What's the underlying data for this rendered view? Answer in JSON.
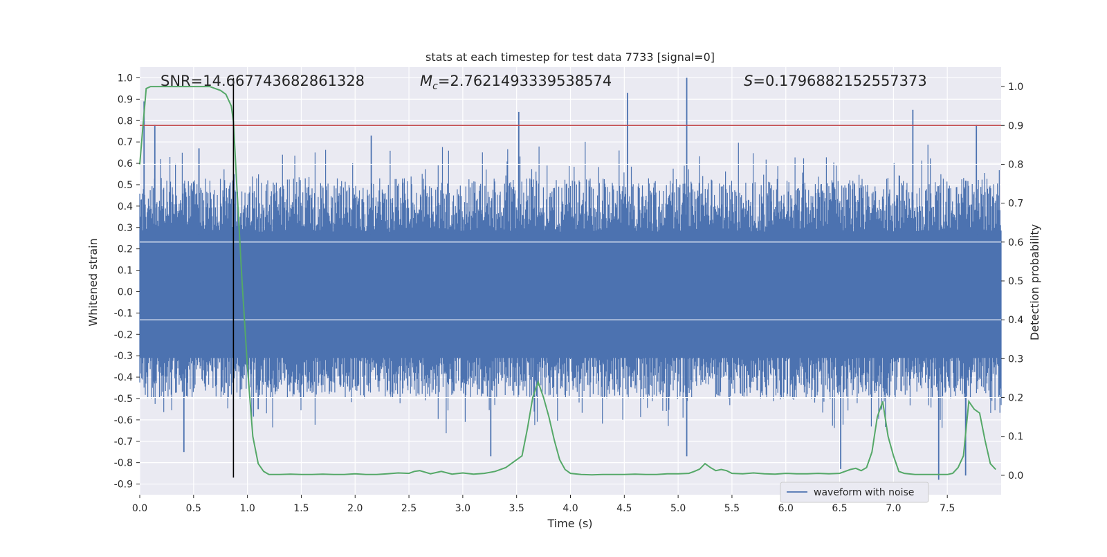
{
  "chart_data": {
    "type": "line",
    "title": "stats at each timestep for test data 7733 [signal=0]",
    "xlabel": "Time (s)",
    "ylabel": "Whitened strain",
    "y2label": "Detection probability",
    "xlim": [
      0.0,
      8.0
    ],
    "ylim": [
      -0.95,
      1.05
    ],
    "y2lim": [
      -0.05,
      1.05
    ],
    "x_ticks": [
      0.0,
      0.5,
      1.0,
      1.5,
      2.0,
      2.5,
      3.0,
      3.5,
      4.0,
      4.5,
      5.0,
      5.5,
      6.0,
      6.5,
      7.0,
      7.5
    ],
    "y_ticks": [
      -0.9,
      -0.8,
      -0.7,
      -0.6,
      -0.5,
      -0.4,
      -0.3,
      -0.2,
      -0.1,
      0.0,
      0.1,
      0.2,
      0.3,
      0.4,
      0.5,
      0.6,
      0.7,
      0.8,
      0.9,
      1.0
    ],
    "y2_ticks": [
      0.0,
      0.1,
      0.2,
      0.3,
      0.4,
      0.5,
      0.6,
      0.7,
      0.8,
      0.9,
      1.0
    ],
    "grid": true,
    "legend": {
      "location": "lower right",
      "entries": [
        "waveform with noise"
      ]
    },
    "annotations": {
      "snr": "SNR=14.667743682861328",
      "mc_symbol": "M",
      "mc_sub": "c",
      "mc_value": "=2.7621493339538574",
      "s_symbol": "S",
      "s_value": "=0.1796882152557373"
    },
    "threshold_probability": 0.9,
    "detection_time": 0.87,
    "series": [
      {
        "name": "waveform with noise",
        "axis": "left",
        "color": "#4c72b0",
        "description": "whitened strain noise, dense oscillation roughly between -0.5 and 0.6 with spikes",
        "peaks": [
          [
            0.04,
            0.89
          ],
          [
            0.14,
            0.78
          ],
          [
            0.41,
            -0.75
          ],
          [
            0.55,
            0.67
          ],
          [
            1.1,
            -0.55
          ],
          [
            2.15,
            0.73
          ],
          [
            3.26,
            -0.77
          ],
          [
            3.52,
            0.84
          ],
          [
            4.53,
            0.93
          ],
          [
            5.08,
            1.0
          ],
          [
            5.08,
            -0.77
          ],
          [
            6.51,
            -0.83
          ],
          [
            7.18,
            0.85
          ],
          [
            7.42,
            -0.88
          ],
          [
            7.67,
            -0.86
          ],
          [
            7.77,
            0.78
          ]
        ]
      },
      {
        "name": "detection probability",
        "axis": "right",
        "color": "#55a868",
        "x": [
          0.0,
          0.03,
          0.06,
          0.1,
          0.2,
          0.3,
          0.4,
          0.5,
          0.6,
          0.65,
          0.7,
          0.75,
          0.8,
          0.85,
          0.87,
          0.9,
          0.95,
          1.0,
          1.05,
          1.1,
          1.15,
          1.2,
          1.3,
          1.4,
          1.5,
          1.6,
          1.7,
          1.8,
          1.9,
          2.0,
          2.1,
          2.2,
          2.3,
          2.4,
          2.5,
          2.55,
          2.6,
          2.7,
          2.8,
          2.9,
          3.0,
          3.1,
          3.2,
          3.3,
          3.4,
          3.5,
          3.55,
          3.6,
          3.65,
          3.7,
          3.75,
          3.8,
          3.85,
          3.9,
          3.95,
          4.0,
          4.1,
          4.2,
          4.3,
          4.4,
          4.5,
          4.6,
          4.7,
          4.8,
          4.9,
          5.0,
          5.1,
          5.15,
          5.2,
          5.25,
          5.3,
          5.35,
          5.4,
          5.45,
          5.5,
          5.6,
          5.7,
          5.8,
          5.9,
          6.0,
          6.1,
          6.2,
          6.3,
          6.4,
          6.5,
          6.55,
          6.6,
          6.65,
          6.7,
          6.75,
          6.8,
          6.85,
          6.9,
          6.95,
          7.0,
          7.05,
          7.1,
          7.2,
          7.3,
          7.4,
          7.5,
          7.55,
          7.6,
          7.65,
          7.7,
          7.75,
          7.8,
          7.85,
          7.9,
          7.95
        ],
        "values": [
          0.8,
          0.9,
          0.995,
          1.0,
          1.0,
          1.0,
          1.0,
          1.0,
          1.0,
          1.0,
          0.995,
          0.99,
          0.98,
          0.95,
          0.91,
          0.75,
          0.5,
          0.28,
          0.1,
          0.03,
          0.01,
          0.002,
          0.002,
          0.003,
          0.002,
          0.002,
          0.003,
          0.002,
          0.002,
          0.004,
          0.002,
          0.002,
          0.004,
          0.006,
          0.005,
          0.01,
          0.012,
          0.004,
          0.01,
          0.003,
          0.006,
          0.003,
          0.005,
          0.01,
          0.02,
          0.04,
          0.05,
          0.12,
          0.2,
          0.24,
          0.2,
          0.15,
          0.09,
          0.04,
          0.015,
          0.005,
          0.002,
          0.001,
          0.002,
          0.002,
          0.002,
          0.003,
          0.002,
          0.002,
          0.004,
          0.004,
          0.005,
          0.01,
          0.016,
          0.03,
          0.02,
          0.012,
          0.015,
          0.012,
          0.005,
          0.004,
          0.006,
          0.004,
          0.003,
          0.005,
          0.004,
          0.004,
          0.005,
          0.004,
          0.005,
          0.01,
          0.015,
          0.018,
          0.012,
          0.02,
          0.06,
          0.15,
          0.19,
          0.1,
          0.05,
          0.01,
          0.005,
          0.002,
          0.002,
          0.002,
          0.002,
          0.005,
          0.02,
          0.05,
          0.19,
          0.17,
          0.16,
          0.09,
          0.03,
          0.015
        ]
      }
    ]
  }
}
